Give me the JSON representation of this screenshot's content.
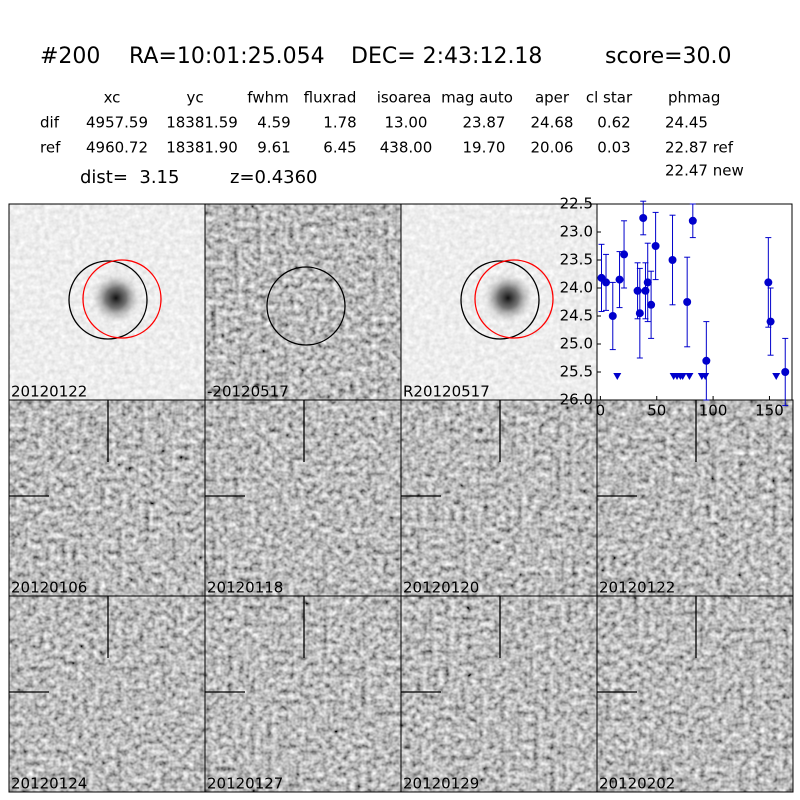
{
  "header": {
    "id": "#200",
    "ra": "RA=10:01:25.054",
    "dec": "DEC= 2:43:12.18",
    "score": "score=30.0"
  },
  "table": {
    "columns": [
      "xc",
      "yc",
      "fwhm",
      "fluxrad",
      "isoarea",
      "mag auto",
      "aper",
      "cl star",
      "phmag"
    ],
    "rows": [
      [
        "dif",
        "4957.59",
        "18381.59",
        "4.59",
        "1.78",
        "13.00",
        "23.87",
        "24.68",
        "0.62",
        "24.45"
      ],
      [
        "ref",
        "4960.72",
        "18381.90",
        "9.61",
        "6.45",
        "438.00",
        "19.70",
        "20.06",
        "0.03",
        "22.87 ref"
      ]
    ],
    "extra": "22.47 new",
    "dist": "dist=  3.15",
    "z": "z=0.4360"
  },
  "stamps": [
    {
      "label": "20120122",
      "color": "#000000"
    },
    {
      "label": "-20120517",
      "color": "#000000"
    },
    {
      "label": "R20120517",
      "color": "#000000"
    },
    {
      "label": "20120106",
      "color": "#000000"
    },
    {
      "label": "20120118",
      "color": "#000000"
    },
    {
      "label": "20120120",
      "color": "#000000"
    },
    {
      "label": "20120122",
      "color": "#ff0000"
    },
    {
      "label": "20120124",
      "color": "#000000"
    },
    {
      "label": "20120127",
      "color": "#000000"
    },
    {
      "label": "20120129",
      "color": "#000000"
    },
    {
      "label": "20120202",
      "color": "#000000"
    }
  ],
  "chart_data": {
    "type": "scatter",
    "color": "#0000cc",
    "xlim": [
      -3,
      170
    ],
    "xticks": [
      0,
      50,
      100,
      150
    ],
    "ylim": [
      26.0,
      22.5
    ],
    "yticks": [
      22.5,
      {
        "value": 23.0,
        "label": "23.0"
      },
      23.5,
      {
        "value": 24.0,
        "label": "24.0"
      },
      24.5,
      {
        "value": 25.0,
        "label": "25.0"
      },
      25.5,
      {
        "value": 26.0,
        "label": "26.0"
      }
    ],
    "series": [
      {
        "marker": "circle",
        "x": [
          1,
          5,
          11,
          17,
          21,
          33,
          35,
          38,
          40,
          42,
          45,
          49,
          64,
          77,
          82,
          94,
          149,
          151,
          164
        ],
        "values": [
          23.82,
          23.9,
          24.5,
          23.85,
          23.4,
          24.05,
          24.45,
          22.75,
          24.05,
          23.9,
          24.3,
          23.25,
          23.5,
          24.25,
          22.8,
          25.3,
          23.9,
          24.6,
          25.5
        ],
        "errors": [
          0.6,
          0.5,
          0.6,
          0.5,
          0.6,
          0.5,
          0.8,
          0.3,
          0.5,
          0.7,
          0.6,
          0.6,
          0.8,
          0.8,
          0.3,
          0.7,
          0.8,
          0.6,
          0.6
        ]
      },
      {
        "marker": "triangle",
        "x": [
          15,
          65,
          68,
          71,
          73,
          79,
          90,
          93,
          156
        ],
        "values": [
          25.5,
          25.5,
          25.5,
          25.5,
          25.5,
          25.5,
          25.5,
          25.5,
          25.5
        ]
      }
    ]
  }
}
